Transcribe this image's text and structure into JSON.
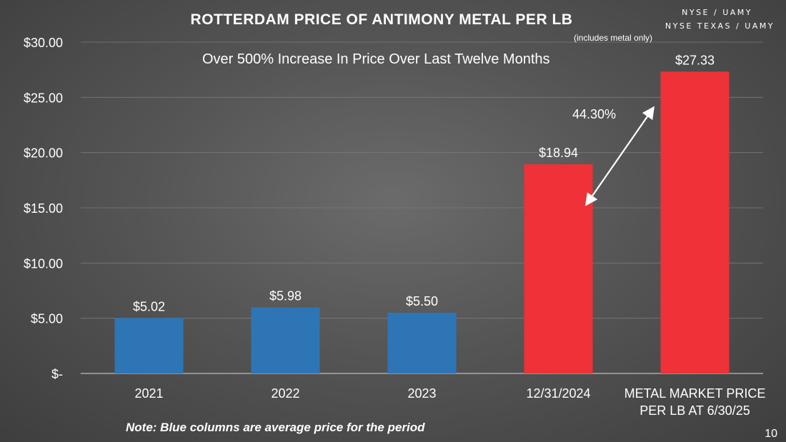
{
  "ticker": {
    "line1": "NYSE / UAMY",
    "line2": "NYSE TEXAS / UAMY"
  },
  "subnote": "(includes metal only)",
  "headline": "Over 500% Increase In Price Over Last Twelve Months",
  "change_label": "44.30%",
  "note": "Note: Blue columns are average price for the period",
  "page_number": "10",
  "colors": {
    "average": "#2e75b6",
    "spot": "#ee3237",
    "text": "#ffffff"
  },
  "chart_data": {
    "type": "bar",
    "title": "ROTTERDAM PRICE OF ANTIMONY METAL PER LB",
    "xlabel": "",
    "ylabel": "",
    "ylim": [
      0,
      30
    ],
    "y_ticks": [
      {
        "value": 0,
        "label": "$-"
      },
      {
        "value": 5,
        "label": "$5.00"
      },
      {
        "value": 10,
        "label": "$10.00"
      },
      {
        "value": 15,
        "label": "$15.00"
      },
      {
        "value": 20,
        "label": "$20.00"
      },
      {
        "value": 25,
        "label": "$25.00"
      },
      {
        "value": 30,
        "label": "$30.00"
      }
    ],
    "grid": true,
    "categories": [
      [
        "2021"
      ],
      [
        "2022"
      ],
      [
        "2023"
      ],
      [
        "12/31/2024"
      ],
      [
        "METAL MARKET PRICE",
        "PER LB AT 6/30/25"
      ]
    ],
    "values": [
      5.02,
      5.98,
      5.5,
      18.94,
      27.33
    ],
    "data_labels": [
      "$5.02",
      "$5.98",
      "$5.50",
      "$18.94",
      "$27.33"
    ],
    "bar_kind": [
      "average",
      "average",
      "average",
      "spot",
      "spot"
    ],
    "annotations": [
      {
        "text": "44.30%",
        "type": "arrow",
        "from_bar": 3,
        "to_bar": 4
      }
    ]
  }
}
